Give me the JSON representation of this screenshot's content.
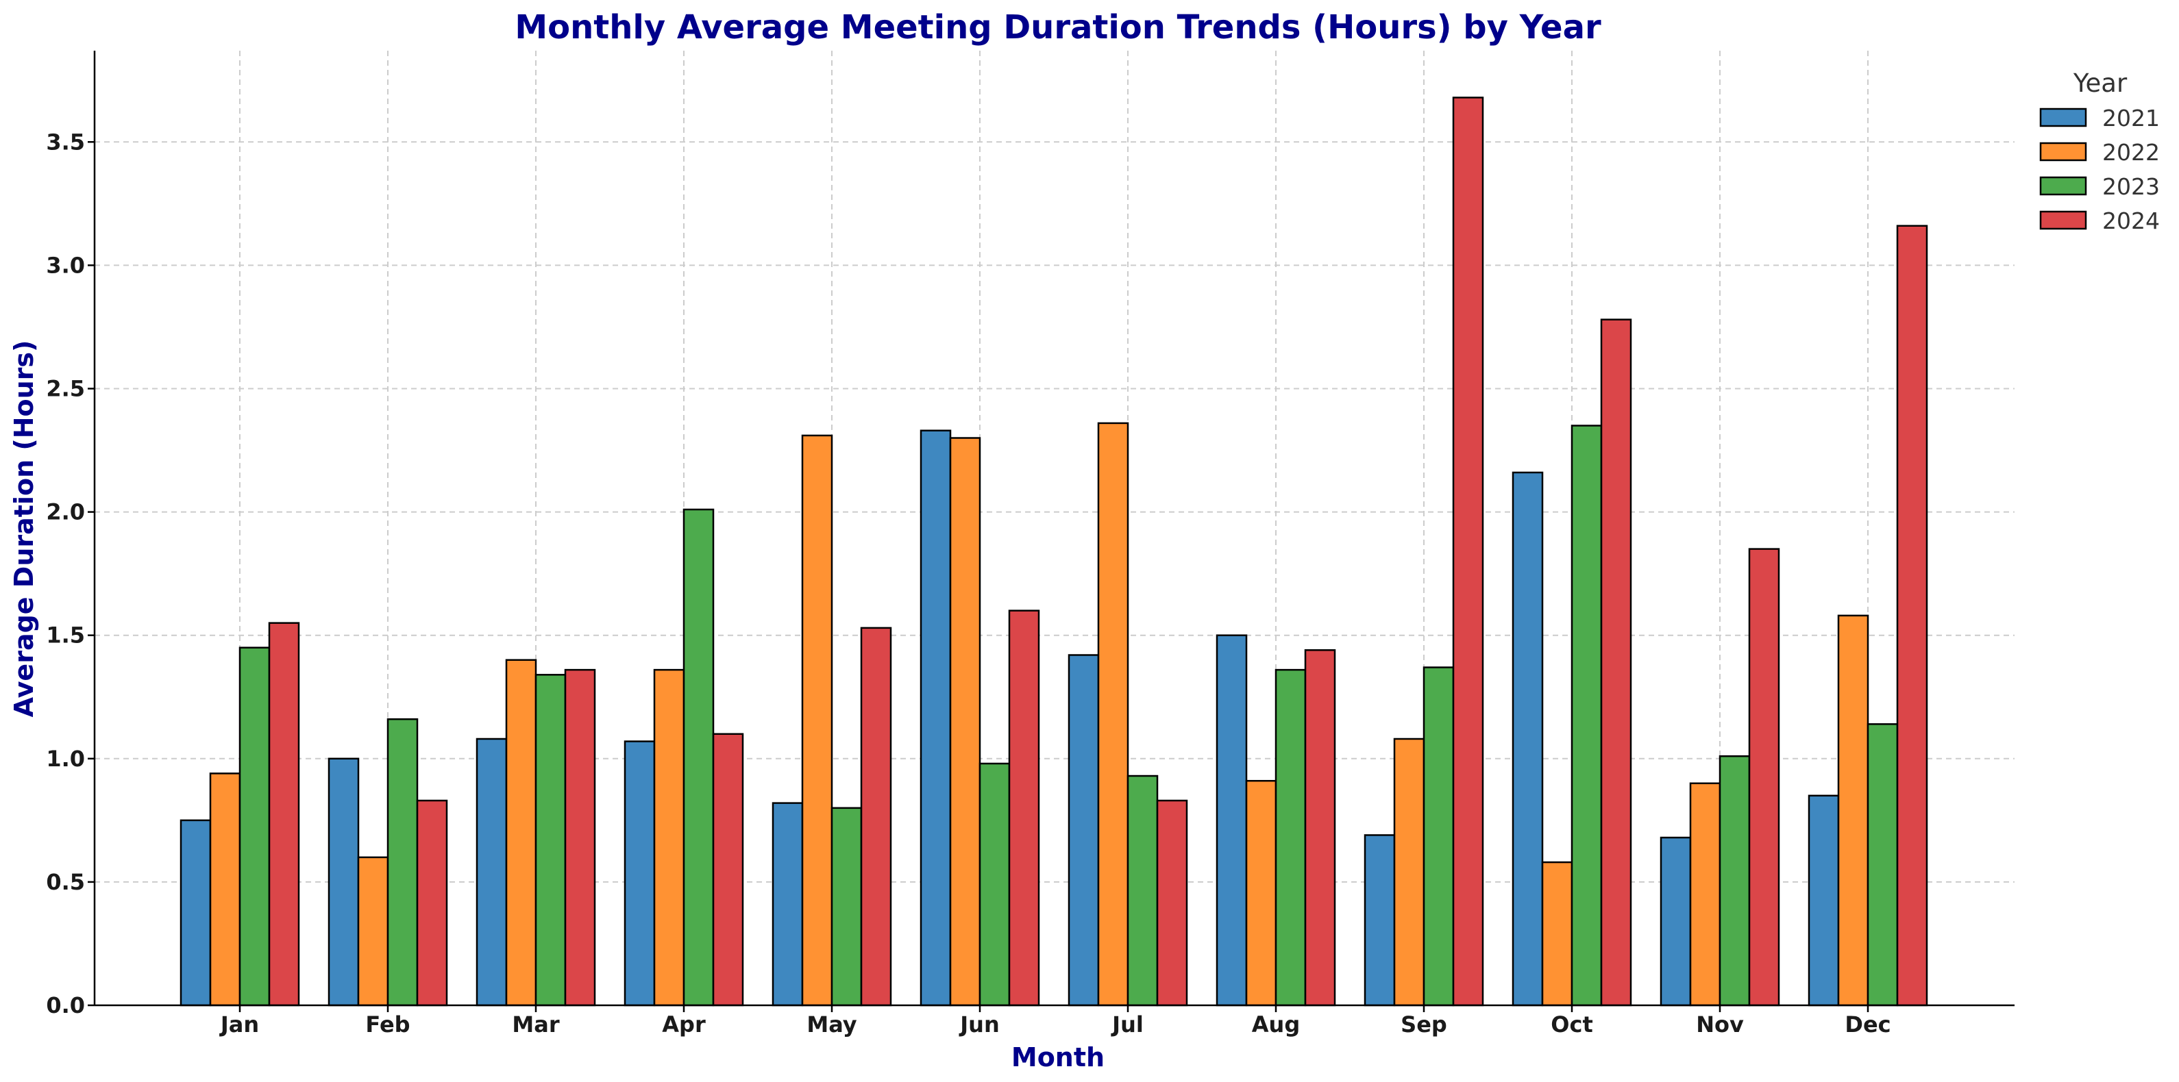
{
  "chart_data": {
    "type": "bar",
    "title": "Monthly Average Meeting Duration Trends (Hours) by Year",
    "xlabel": "Month",
    "ylabel": "Average Duration (Hours)",
    "ylim": [
      0,
      3.87
    ],
    "yticks": [
      0.0,
      0.5,
      1.0,
      1.5,
      2.0,
      2.5,
      3.0,
      3.5
    ],
    "grid": true,
    "legend_title": "Year",
    "legend_position": "top-right, outside plot",
    "categories": [
      "Jan",
      "Feb",
      "Mar",
      "Apr",
      "May",
      "Jun",
      "Jul",
      "Aug",
      "Sep",
      "Oct",
      "Nov",
      "Dec"
    ],
    "series": [
      {
        "name": "2021",
        "color": "#3f88c0",
        "values": [
          0.75,
          1.0,
          1.08,
          1.07,
          0.82,
          2.33,
          1.42,
          1.5,
          0.69,
          2.16,
          0.68,
          0.85
        ]
      },
      {
        "name": "2022",
        "color": "#ff9233",
        "values": [
          0.94,
          0.6,
          1.4,
          1.36,
          2.31,
          2.3,
          2.36,
          0.91,
          1.08,
          0.58,
          0.9,
          1.58
        ]
      },
      {
        "name": "2023",
        "color": "#4dab4d",
        "values": [
          1.45,
          1.16,
          1.34,
          2.01,
          0.8,
          0.98,
          0.93,
          1.36,
          1.37,
          2.35,
          1.01,
          1.14
        ]
      },
      {
        "name": "2024",
        "color": "#db4649",
        "values": [
          1.55,
          0.83,
          1.36,
          1.1,
          1.53,
          1.6,
          0.83,
          1.44,
          3.68,
          2.78,
          1.85,
          3.16
        ]
      }
    ]
  }
}
